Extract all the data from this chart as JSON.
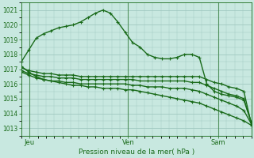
{
  "bg_color": "#c8e8e0",
  "grid_color": "#a0c8c0",
  "line_color": "#1a6b1a",
  "title": "Pression niveau de la mer( hPa )",
  "ylabel_ticks": [
    1013,
    1014,
    1015,
    1016,
    1017,
    1018,
    1019,
    1020,
    1021
  ],
  "xlim": [
    0,
    56
  ],
  "ylim": [
    1012.5,
    1021.5
  ],
  "xtick_positions": [
    2,
    26,
    48
  ],
  "xtick_labels": [
    "Jeu",
    "Ven",
    "Sam"
  ],
  "vlines": [
    2,
    26,
    48
  ],
  "lines": [
    [
      1017.5,
      1018.3,
      1019.1,
      1019.4,
      1019.6,
      1019.8,
      1019.9,
      1020.0,
      1020.2,
      1020.5,
      1020.8,
      1021.0,
      1020.8,
      1020.2,
      1019.5,
      1018.8,
      1018.5,
      1018.0,
      1017.8,
      1017.7,
      1017.7,
      1017.8,
      1018.0,
      1018.0,
      1017.8,
      1016.0,
      1015.5,
      1015.3,
      1015.2,
      1015.1,
      1014.9,
      1013.4
    ],
    [
      1017.1,
      1016.9,
      1016.8,
      1016.7,
      1016.7,
      1016.6,
      1016.6,
      1016.6,
      1016.5,
      1016.5,
      1016.5,
      1016.5,
      1016.5,
      1016.5,
      1016.5,
      1016.5,
      1016.5,
      1016.5,
      1016.5,
      1016.5,
      1016.5,
      1016.5,
      1016.5,
      1016.5,
      1016.5,
      1016.3,
      1016.1,
      1016.0,
      1015.8,
      1015.7,
      1015.5,
      1013.3
    ],
    [
      1016.9,
      1016.7,
      1016.6,
      1016.5,
      1016.5,
      1016.4,
      1016.4,
      1016.4,
      1016.3,
      1016.3,
      1016.3,
      1016.3,
      1016.3,
      1016.3,
      1016.3,
      1016.3,
      1016.2,
      1016.2,
      1016.2,
      1016.2,
      1016.2,
      1016.2,
      1016.2,
      1016.1,
      1016.1,
      1015.9,
      1015.7,
      1015.5,
      1015.3,
      1015.2,
      1015.0,
      1013.4
    ],
    [
      1016.8,
      1016.6,
      1016.4,
      1016.3,
      1016.2,
      1016.2,
      1016.1,
      1016.1,
      1016.0,
      1016.0,
      1016.0,
      1016.0,
      1016.0,
      1016.0,
      1016.0,
      1015.9,
      1015.9,
      1015.8,
      1015.8,
      1015.8,
      1015.7,
      1015.7,
      1015.7,
      1015.6,
      1015.5,
      1015.3,
      1015.1,
      1014.9,
      1014.7,
      1014.5,
      1014.2,
      1013.3
    ],
    [
      1017.2,
      1016.8,
      1016.5,
      1016.3,
      1016.2,
      1016.1,
      1016.0,
      1015.9,
      1015.9,
      1015.8,
      1015.8,
      1015.7,
      1015.7,
      1015.7,
      1015.6,
      1015.6,
      1015.5,
      1015.4,
      1015.3,
      1015.2,
      1015.1,
      1015.0,
      1014.9,
      1014.8,
      1014.7,
      1014.5,
      1014.3,
      1014.1,
      1013.9,
      1013.7,
      1013.5,
      1013.2
    ]
  ],
  "marker": "+",
  "markersize": 3.5,
  "linewidth": 1.0,
  "figsize": [
    3.2,
    2.0
  ],
  "dpi": 100
}
